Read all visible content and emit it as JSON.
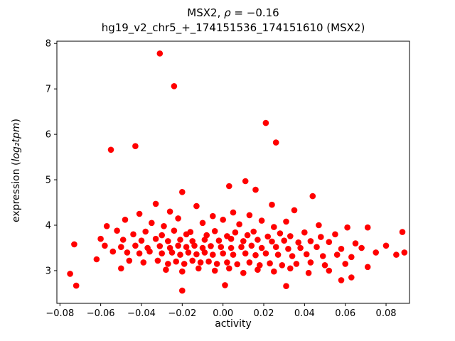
{
  "title": {
    "line1_prefix": "MSX2, ",
    "line1_rho": "ρ",
    "line1_suffix": " = −0.16",
    "line2": "hg19_v2_chr5_+_174151536_174151610 (MSX2)"
  },
  "ylabel_parts": {
    "prefix": "expression (",
    "math": "log₂tpm",
    "suffix": ")"
  },
  "chart_data": {
    "type": "scatter",
    "title": "MSX2, ρ = −0.16",
    "subtitle": "hg19_v2_chr5_+_174151536_174151610 (MSX2)",
    "xlabel": "activity",
    "ylabel": "expression (log₂tpm)",
    "xlim": [
      -0.0815,
      0.0915
    ],
    "ylim": [
      2.28,
      8.05
    ],
    "xticks": {
      "values": [
        -0.08,
        -0.06,
        -0.04,
        -0.02,
        0.0,
        0.02,
        0.04,
        0.06,
        0.08
      ],
      "labels": [
        "−0.08",
        "−0.06",
        "−0.04",
        "−0.02",
        "0.00",
        "0.02",
        "0.04",
        "0.06",
        "0.08"
      ]
    },
    "yticks": {
      "values": [
        3,
        4,
        5,
        6,
        7,
        8
      ],
      "labels": [
        "3",
        "4",
        "5",
        "6",
        "7",
        "8"
      ]
    },
    "grid": false,
    "legend": "none",
    "marker_color": "#ff0000",
    "axis_color": "#000000",
    "points": [
      [
        -0.031,
        7.78
      ],
      [
        -0.024,
        7.06
      ],
      [
        0.021,
        6.25
      ],
      [
        0.026,
        5.82
      ],
      [
        -0.043,
        5.74
      ],
      [
        -0.055,
        5.66
      ],
      [
        0.011,
        4.97
      ],
      [
        0.003,
        4.86
      ],
      [
        0.016,
        4.78
      ],
      [
        -0.02,
        4.73
      ],
      [
        0.044,
        4.64
      ],
      [
        -0.033,
        4.47
      ],
      [
        0.024,
        4.45
      ],
      [
        -0.013,
        4.42
      ],
      [
        0.035,
        4.33
      ],
      [
        -0.026,
        4.3
      ],
      [
        0.005,
        4.28
      ],
      [
        -0.041,
        4.25
      ],
      [
        0.013,
        4.22
      ],
      [
        -0.005,
        4.2
      ],
      [
        -0.048,
        4.12
      ],
      [
        -0.022,
        4.15
      ],
      [
        0.0,
        4.12
      ],
      [
        0.019,
        4.1
      ],
      [
        0.031,
        4.08
      ],
      [
        -0.035,
        4.05
      ],
      [
        -0.01,
        4.05
      ],
      [
        0.008,
        4.02
      ],
      [
        0.047,
        4.0
      ],
      [
        0.061,
        3.95
      ],
      [
        -0.057,
        3.98
      ],
      [
        -0.029,
        3.98
      ],
      [
        0.025,
        3.96
      ],
      [
        -0.052,
        3.88
      ],
      [
        -0.038,
        3.86
      ],
      [
        -0.024,
        3.88
      ],
      [
        -0.016,
        3.85
      ],
      [
        -0.004,
        3.87
      ],
      [
        0.006,
        3.84
      ],
      [
        0.015,
        3.86
      ],
      [
        0.028,
        3.82
      ],
      [
        0.04,
        3.84
      ],
      [
        0.088,
        3.85
      ],
      [
        0.055,
        3.8
      ],
      [
        -0.044,
        3.8
      ],
      [
        -0.03,
        3.78
      ],
      [
        -0.018,
        3.8
      ],
      [
        -0.008,
        3.78
      ],
      [
        0.002,
        3.76
      ],
      [
        0.012,
        3.78
      ],
      [
        0.022,
        3.75
      ],
      [
        0.033,
        3.76
      ],
      [
        0.048,
        3.74
      ],
      [
        -0.06,
        3.7
      ],
      [
        -0.049,
        3.68
      ],
      [
        -0.04,
        3.66
      ],
      [
        -0.033,
        3.7
      ],
      [
        -0.027,
        3.65
      ],
      [
        -0.021,
        3.68
      ],
      [
        -0.015,
        3.65
      ],
      [
        -0.009,
        3.68
      ],
      [
        -0.002,
        3.66
      ],
      [
        0.004,
        3.7
      ],
      [
        0.01,
        3.65
      ],
      [
        0.017,
        3.68
      ],
      [
        0.024,
        3.64
      ],
      [
        0.03,
        3.66
      ],
      [
        0.037,
        3.62
      ],
      [
        0.043,
        3.65
      ],
      [
        0.052,
        3.63
      ],
      [
        0.065,
        3.6
      ],
      [
        -0.073,
        3.58
      ],
      [
        -0.058,
        3.55
      ],
      [
        -0.05,
        3.52
      ],
      [
        -0.043,
        3.55
      ],
      [
        -0.037,
        3.5
      ],
      [
        -0.031,
        3.54
      ],
      [
        -0.026,
        3.5
      ],
      [
        -0.022,
        3.55
      ],
      [
        -0.018,
        3.52
      ],
      [
        -0.014,
        3.55
      ],
      [
        -0.01,
        3.5
      ],
      [
        -0.006,
        3.54
      ],
      [
        -0.001,
        3.52
      ],
      [
        0.004,
        3.5
      ],
      [
        0.009,
        3.52
      ],
      [
        0.014,
        3.55
      ],
      [
        0.019,
        3.5
      ],
      [
        0.026,
        3.52
      ],
      [
        0.032,
        3.48
      ],
      [
        0.038,
        3.5
      ],
      [
        0.046,
        3.52
      ],
      [
        0.058,
        3.48
      ],
      [
        0.068,
        3.5
      ],
      [
        0.08,
        3.55
      ],
      [
        -0.054,
        3.42
      ],
      [
        -0.047,
        3.4
      ],
      [
        -0.041,
        3.38
      ],
      [
        -0.036,
        3.42
      ],
      [
        -0.03,
        3.38
      ],
      [
        -0.025,
        3.4
      ],
      [
        -0.021,
        3.35
      ],
      [
        -0.017,
        3.4
      ],
      [
        -0.013,
        3.36
      ],
      [
        -0.009,
        3.4
      ],
      [
        -0.005,
        3.35
      ],
      [
        0.0,
        3.38
      ],
      [
        0.005,
        3.35
      ],
      [
        0.011,
        3.38
      ],
      [
        0.016,
        3.34
      ],
      [
        0.021,
        3.38
      ],
      [
        0.027,
        3.35
      ],
      [
        0.034,
        3.32
      ],
      [
        0.041,
        3.36
      ],
      [
        0.049,
        3.32
      ],
      [
        0.056,
        3.35
      ],
      [
        0.063,
        3.3
      ],
      [
        0.089,
        3.4
      ],
      [
        0.085,
        3.35
      ],
      [
        0.075,
        3.4
      ],
      [
        -0.062,
        3.25
      ],
      [
        -0.046,
        3.22
      ],
      [
        -0.039,
        3.18
      ],
      [
        -0.032,
        3.22
      ],
      [
        -0.027,
        3.15
      ],
      [
        -0.023,
        3.2
      ],
      [
        -0.019,
        3.15
      ],
      [
        -0.015,
        3.22
      ],
      [
        -0.011,
        3.18
      ],
      [
        -0.007,
        3.2
      ],
      [
        -0.003,
        3.15
      ],
      [
        0.002,
        3.18
      ],
      [
        0.007,
        3.14
      ],
      [
        0.013,
        3.18
      ],
      [
        0.018,
        3.12
      ],
      [
        0.023,
        3.16
      ],
      [
        0.029,
        3.12
      ],
      [
        0.036,
        3.15
      ],
      [
        0.043,
        3.18
      ],
      [
        0.05,
        3.12
      ],
      [
        0.06,
        3.15
      ],
      [
        -0.075,
        2.93
      ],
      [
        -0.05,
        3.05
      ],
      [
        -0.028,
        3.02
      ],
      [
        -0.02,
        2.98
      ],
      [
        -0.012,
        3.05
      ],
      [
        -0.004,
        3.0
      ],
      [
        0.003,
        3.05
      ],
      [
        0.01,
        2.95
      ],
      [
        0.017,
        3.02
      ],
      [
        0.025,
        2.98
      ],
      [
        0.033,
        3.05
      ],
      [
        0.042,
        2.95
      ],
      [
        0.052,
        3.0
      ],
      [
        0.063,
        2.85
      ],
      [
        0.071,
        3.08
      ],
      [
        0.071,
        3.95
      ],
      [
        -0.072,
        2.67
      ],
      [
        -0.02,
        2.56
      ],
      [
        0.001,
        2.68
      ],
      [
        0.031,
        2.66
      ],
      [
        0.058,
        2.79
      ]
    ]
  }
}
